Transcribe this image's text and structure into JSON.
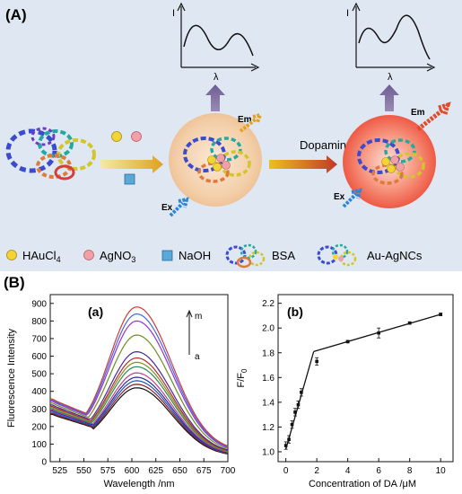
{
  "panel_a": {
    "label": "(A)",
    "spectrum_axis": {
      "y": "I",
      "x": "λ"
    },
    "arrow_label": "Dopamine",
    "em_label": "Em",
    "ex_label": "Ex",
    "legend": [
      {
        "formula_main": "HAuCl",
        "formula_sub": "4",
        "color": "#f2d434"
      },
      {
        "formula_main": "AgNO",
        "formula_sub": "3",
        "color": "#f0a0a6"
      },
      {
        "formula_main": "NaOH",
        "formula_sub": "",
        "color": "#5aa8d8"
      },
      {
        "formula_main": "BSA",
        "formula_sub": "",
        "color": ""
      },
      {
        "formula_main": "Au-AgNCs",
        "formula_sub": "",
        "color": ""
      }
    ]
  },
  "panel_b": {
    "label": "(B)",
    "sub_a": "(a)",
    "sub_b": "(b)",
    "legend_top": "m",
    "legend_bottom": "a"
  },
  "chart_data": [
    {
      "type": "line",
      "xlabel": "Wavelength /nm",
      "ylabel": "Fluorescence Intensity",
      "xlim": [
        515,
        700
      ],
      "ylim": [
        0,
        950
      ],
      "xticks": [
        525,
        550,
        575,
        600,
        625,
        650,
        675,
        700
      ],
      "yticks": [
        0,
        100,
        200,
        300,
        400,
        500,
        600,
        700,
        800,
        900
      ],
      "series_order": [
        "a",
        "b",
        "c",
        "d",
        "e",
        "f",
        "g",
        "h",
        "i",
        "j",
        "k",
        "l",
        "m"
      ],
      "peaks": [
        420,
        440,
        460,
        480,
        505,
        540,
        565,
        590,
        625,
        720,
        800,
        840,
        880
      ],
      "start_values": [
        270,
        275,
        282,
        290,
        296,
        302,
        310,
        316,
        324,
        335,
        345,
        352,
        358
      ],
      "end_values": [
        30,
        32,
        34,
        36,
        38,
        40,
        42,
        44,
        46,
        50,
        54,
        57,
        60
      ],
      "colors": [
        "#111111",
        "#8b1a1a",
        "#1f4fbf",
        "#2a2a9a",
        "#c04080",
        "#2e8b57",
        "#8a8a20",
        "#b03030",
        "#4b2a9a",
        "#6b8e23",
        "#9932cc",
        "#4169e1",
        "#d03a3a"
      ]
    },
    {
      "type": "line",
      "xlabel": "Concentration of DA /μM",
      "ylabel": "F/F",
      "ylabel_sub": "0",
      "xlim": [
        -0.5,
        10.8
      ],
      "ylim": [
        0.92,
        2.27
      ],
      "xticks": [
        0,
        2,
        4,
        6,
        8,
        10
      ],
      "yticks": [
        1.0,
        1.2,
        1.4,
        1.6,
        1.8,
        2.0,
        2.2
      ],
      "x": [
        0,
        0.2,
        0.4,
        0.6,
        0.8,
        1.0,
        2.0,
        4.0,
        6.0,
        8.0,
        10.0
      ],
      "y": [
        1.05,
        1.1,
        1.22,
        1.32,
        1.38,
        1.48,
        1.73,
        1.89,
        1.96,
        2.04,
        2.11
      ],
      "errors": [
        0.03,
        0.03,
        0.03,
        0.03,
        0.03,
        0.03,
        0.03,
        0.01,
        0.04,
        0.01,
        0.01
      ],
      "fit_segments": [
        [
          [
            0,
            1.02
          ],
          [
            1.8,
            1.81
          ]
        ],
        [
          [
            1.8,
            1.81
          ],
          [
            10,
            2.11
          ]
        ]
      ]
    }
  ]
}
